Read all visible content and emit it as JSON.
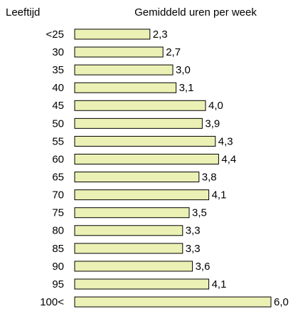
{
  "chart_data": {
    "type": "bar",
    "orientation": "horizontal",
    "title": "Gemiddeld uren per week",
    "y_label": "Leeftijd",
    "categories": [
      "<25",
      "30",
      "35",
      "40",
      "45",
      "50",
      "55",
      "60",
      "65",
      "70",
      "75",
      "80",
      "85",
      "90",
      "95",
      "100<"
    ],
    "values": [
      2.3,
      2.7,
      3.0,
      3.1,
      4.0,
      3.9,
      4.3,
      4.4,
      3.8,
      4.1,
      3.5,
      3.3,
      3.3,
      3.6,
      4.1,
      6.0
    ],
    "value_labels": [
      "2,3",
      "2,7",
      "3,0",
      "3,1",
      "4,0",
      "3,9",
      "4,3",
      "4,4",
      "3,8",
      "4,1",
      "3,5",
      "3,3",
      "3,3",
      "3,6",
      "4,1",
      "6,0"
    ],
    "color": "#ebf0b4",
    "xlim": [
      0,
      6
    ]
  }
}
